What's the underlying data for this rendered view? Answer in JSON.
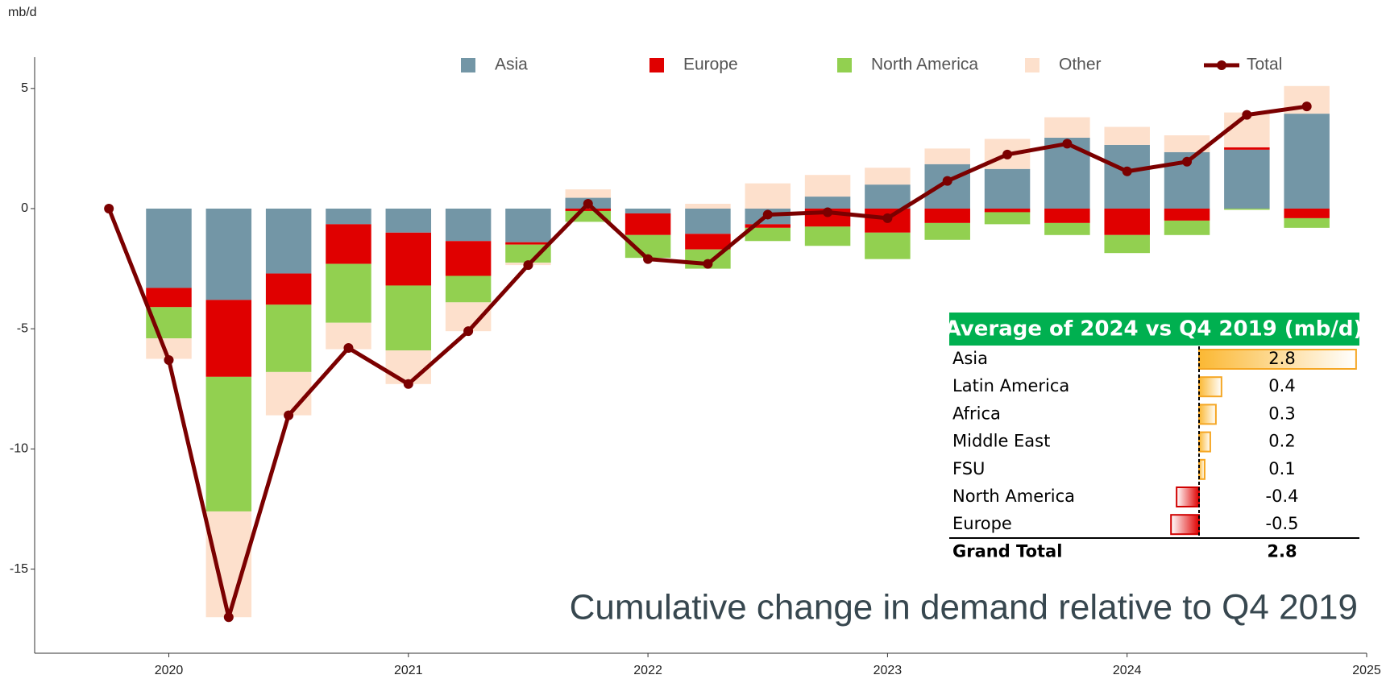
{
  "chart_data": {
    "type": "stacked-bar-line",
    "y_unit": "mb/d",
    "annotation": "Cumulative change in demand relative to Q4 2019",
    "x": [
      2019.75,
      2020,
      2020.25,
      2020.5,
      2020.75,
      2021,
      2021.25,
      2021.5,
      2021.75,
      2022,
      2022.25,
      2022.5,
      2022.75,
      2023,
      2023.25,
      2023.5,
      2023.75,
      2024,
      2024.25,
      2024.5,
      2024.75
    ],
    "xlim": [
      2019.44,
      2025
    ],
    "xticks": [
      2020,
      2021,
      2022,
      2023,
      2024,
      2025
    ],
    "ylim": [
      -18.5,
      6.3
    ],
    "yticks": [
      5,
      0,
      -5,
      -10,
      -15
    ],
    "series": [
      {
        "name": "Asia",
        "color": "#7396a6",
        "kind": "bar",
        "values": [
          null,
          -3.3,
          -3.8,
          -2.7,
          -0.65,
          -1.0,
          -1.35,
          -1.4,
          0.45,
          -0.2,
          -1.05,
          -0.65,
          0.5,
          1.0,
          1.85,
          1.65,
          2.95,
          2.65,
          2.35,
          2.45,
          3.95
        ]
      },
      {
        "name": "Europe",
        "color": "#e00000",
        "kind": "bar",
        "values": [
          null,
          -0.8,
          -3.2,
          -1.3,
          -1.65,
          -2.2,
          -1.45,
          -0.1,
          -0.1,
          -0.9,
          -0.65,
          -0.15,
          -0.75,
          -1.0,
          -0.6,
          -0.15,
          -0.6,
          -1.1,
          -0.5,
          0.1,
          -0.4
        ]
      },
      {
        "name": "North America",
        "color": "#92d050",
        "kind": "bar",
        "values": [
          null,
          -1.3,
          -5.6,
          -2.8,
          -2.45,
          -2.7,
          -1.1,
          -0.75,
          -0.45,
          -0.95,
          -0.8,
          -0.55,
          -0.8,
          -1.1,
          -0.7,
          -0.5,
          -0.5,
          -0.75,
          -0.6,
          -0.05,
          -0.4
        ]
      },
      {
        "name": "Other",
        "color": "#fde0cc",
        "kind": "bar",
        "values": [
          null,
          -0.85,
          -4.4,
          -1.8,
          -1.1,
          -1.4,
          -1.2,
          -0.1,
          0.35,
          0,
          0.2,
          1.05,
          0.9,
          0.7,
          0.65,
          1.25,
          0.85,
          0.75,
          0.7,
          1.45,
          1.15
        ]
      },
      {
        "name": "Total",
        "color": "#7b0000",
        "kind": "line",
        "values": [
          0,
          -6.3,
          -17.0,
          -8.6,
          -5.8,
          -7.3,
          -5.1,
          -2.35,
          0.2,
          -2.1,
          -2.3,
          -0.25,
          -0.15,
          -0.4,
          1.15,
          2.25,
          2.7,
          1.55,
          1.95,
          3.9,
          4.25
        ]
      }
    ]
  },
  "table": {
    "title": "Average of 2024 vs Q4 2019 (mb/d)",
    "rows": [
      {
        "label": "Asia",
        "value": 2.8
      },
      {
        "label": "Latin America",
        "value": 0.4
      },
      {
        "label": "Africa",
        "value": 0.3
      },
      {
        "label": "Middle East",
        "value": 0.2
      },
      {
        "label": "FSU",
        "value": 0.1
      },
      {
        "label": "North America",
        "value": -0.4
      },
      {
        "label": "Europe",
        "value": -0.5
      }
    ],
    "total": {
      "label": "Grand Total",
      "value": 2.8
    }
  }
}
